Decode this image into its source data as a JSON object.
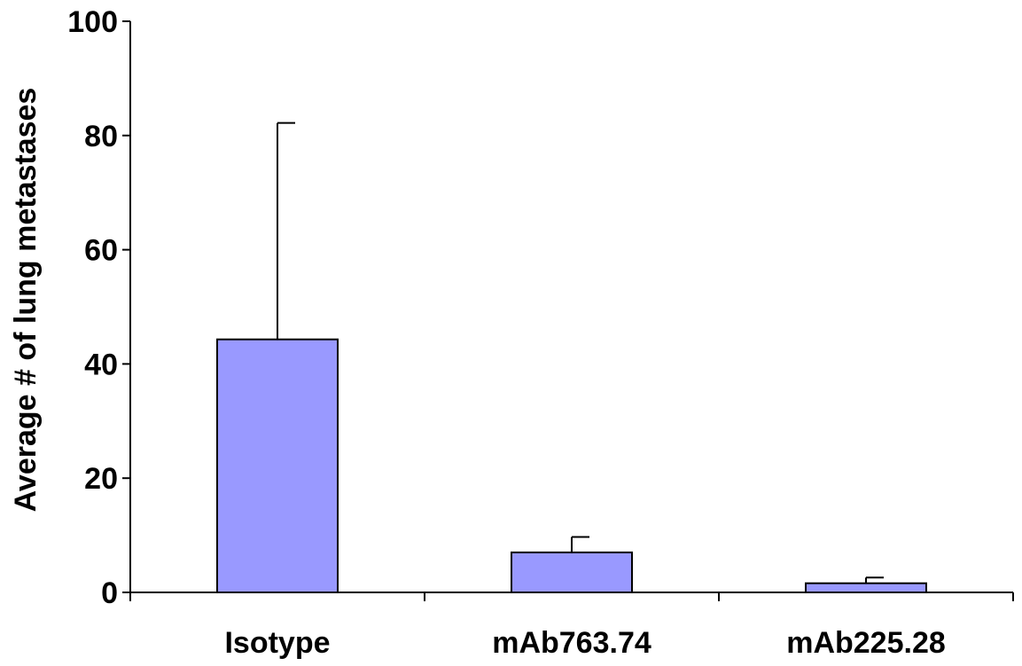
{
  "chart_data": {
    "type": "bar",
    "title": "",
    "xlabel": "",
    "ylabel": "Average # of lung metastases",
    "categories": [
      "Isotype",
      "mAb763.74",
      "mAb225.28"
    ],
    "values": [
      44.3,
      7.0,
      1.6
    ],
    "error_upper": [
      82.2,
      9.7,
      2.6
    ],
    "ylim": [
      0,
      100
    ],
    "yticks": [
      0,
      20,
      40,
      60,
      80,
      100
    ],
    "ytick_labels": [
      "0",
      "20",
      "40",
      "60",
      "80",
      "100"
    ],
    "grid": false,
    "legend": "none",
    "bar_fill": "#9999ff",
    "bar_stroke": "#000000"
  }
}
